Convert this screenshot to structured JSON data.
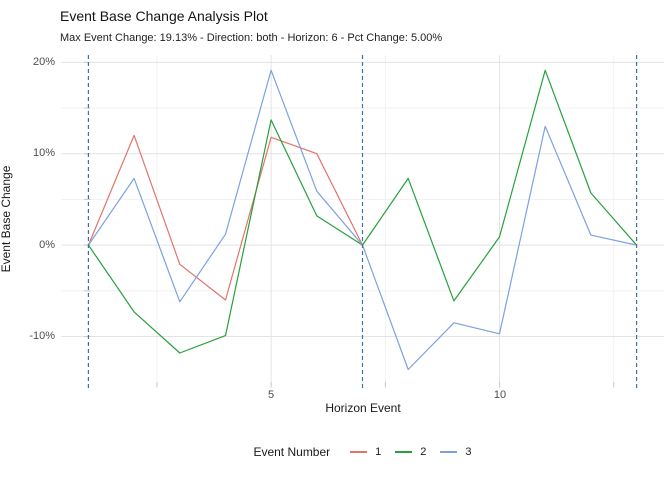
{
  "chart_data": {
    "type": "line",
    "title": "Event Base Change Analysis Plot",
    "subtitle": "Max Event Change: 19.13% - Direction: both - Horizon: 6 - Pct Change: 5.00%",
    "xlabel": "Horizon Event",
    "ylabel": "Event Base Change",
    "xlim": [
      0.4,
      13.6
    ],
    "ylim": [
      -15.3,
      20.8
    ],
    "grid": "on",
    "x_major_grid": [
      5,
      10
    ],
    "x_minor_grid": [
      2.5,
      7.5,
      12.5
    ],
    "y_major_grid": [
      20,
      10,
      0,
      -10
    ],
    "y_minor_grid": [
      15,
      5,
      -5
    ],
    "x_tick_values": [
      5,
      10
    ],
    "x_tick_labels": [
      "5",
      "10"
    ],
    "y_tick_values": [
      20,
      10,
      0,
      -10
    ],
    "y_tick_labels": [
      "20%",
      "10%",
      "0%",
      "-10%"
    ],
    "x_axis_tick_marks": [
      2.5,
      5,
      7.5,
      10,
      12.5
    ],
    "y_axis_tick_marks": [
      20,
      15,
      10,
      5,
      0,
      -5,
      -10
    ],
    "event_vlines": [
      1,
      7,
      13
    ],
    "vline_color": "#3E7193",
    "grid_major_color": "#E3E3E3",
    "grid_minor_color": "#F1F1F1",
    "tick_mark_color": "#C8C8C8",
    "legend": {
      "title": "Event Number",
      "position": "bottom",
      "entries": [
        "1",
        "2",
        "3"
      ]
    },
    "series": [
      {
        "name": "1",
        "color": "#E4736B",
        "x": [
          1,
          2,
          3,
          4,
          5,
          6,
          7
        ],
        "y": [
          0,
          12.0,
          -2.1,
          -6.0,
          11.8,
          10.0,
          0
        ]
      },
      {
        "name": "2",
        "color": "#28A03C",
        "x": [
          1,
          2,
          3,
          4,
          5,
          6,
          7,
          8,
          9,
          10,
          11,
          12,
          13
        ],
        "y": [
          0,
          -7.3,
          -11.8,
          -9.9,
          13.7,
          3.2,
          0,
          7.3,
          -6.1,
          0.9,
          19.13,
          5.7,
          0
        ]
      },
      {
        "name": "3",
        "color": "#7DA1E0",
        "x": [
          1,
          2,
          3,
          4,
          5,
          6,
          7,
          8,
          9,
          10,
          11,
          12,
          13
        ],
        "y": [
          0,
          7.3,
          -6.2,
          1.2,
          19.13,
          5.9,
          0,
          -13.6,
          -8.5,
          -9.7,
          13.0,
          1.1,
          0
        ]
      }
    ]
  }
}
